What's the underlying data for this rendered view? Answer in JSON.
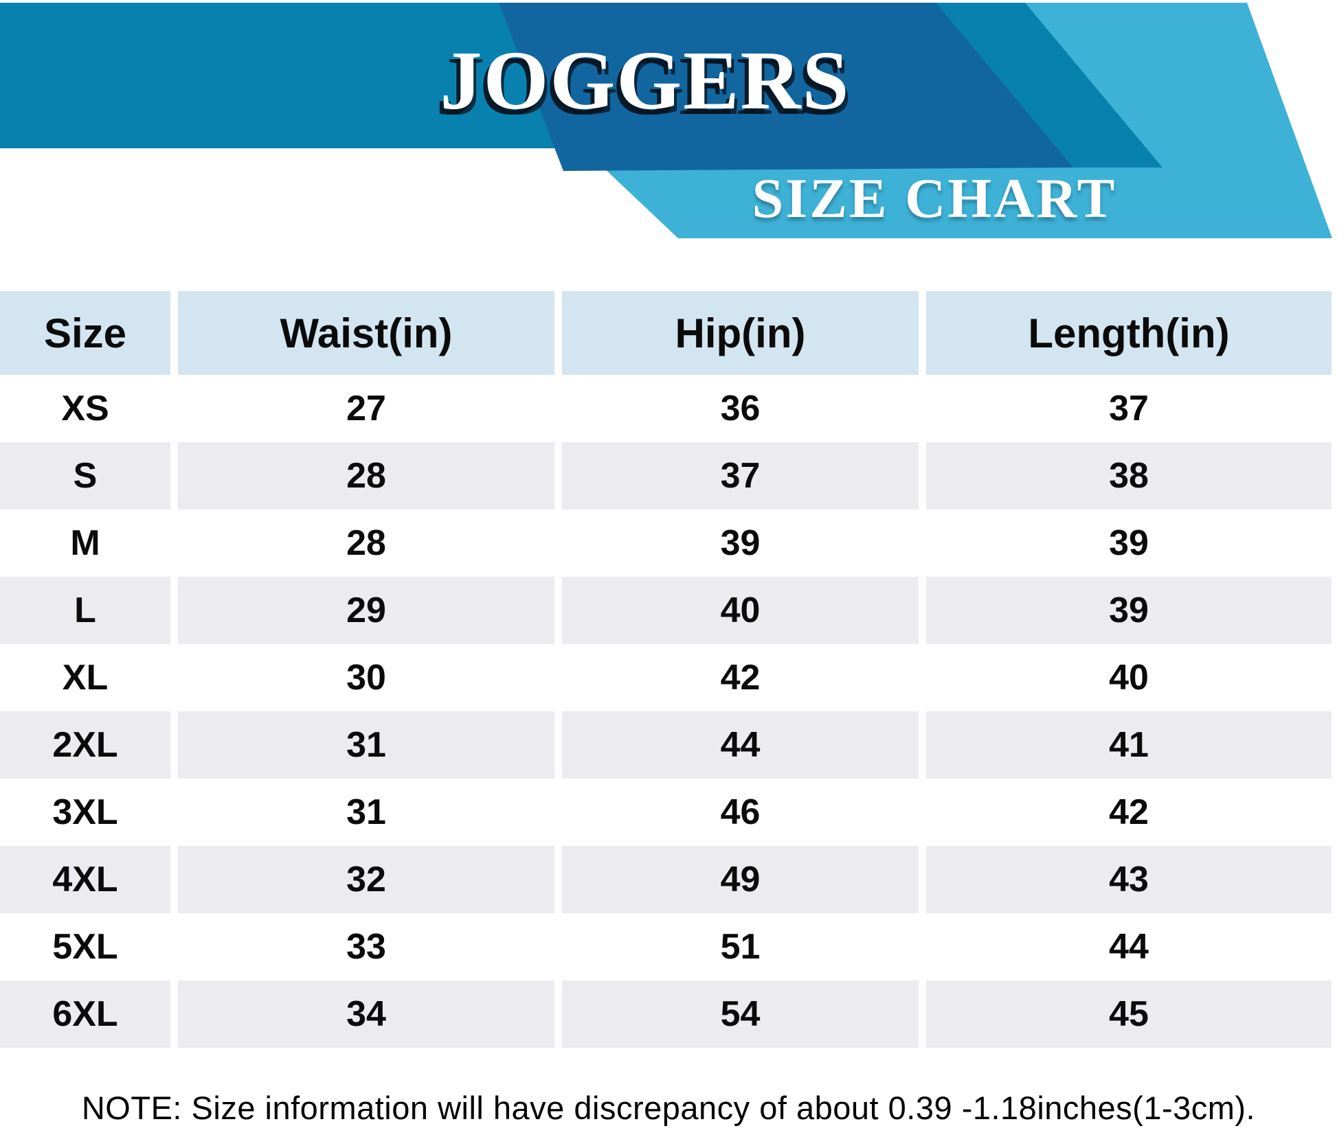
{
  "header": {
    "title": "JOGGERS",
    "subtitle": "SIZE CHART",
    "colors": {
      "banner_blue": "#0981af",
      "dark_blue": "#1266a0",
      "light_blue": "#3eb1d6",
      "table_header_bg": "#d3e5f1",
      "stripe_gray": "#ebebf0"
    }
  },
  "table": {
    "columns": [
      "Size",
      "Waist(in)",
      "Hip(in)",
      "Length(in)"
    ],
    "rows": [
      {
        "size": "XS",
        "waist": "27",
        "hip": "36",
        "length": "37"
      },
      {
        "size": "S",
        "waist": "28",
        "hip": "37",
        "length": "38"
      },
      {
        "size": "M",
        "waist": "28",
        "hip": "39",
        "length": "39"
      },
      {
        "size": "L",
        "waist": "29",
        "hip": "40",
        "length": "39"
      },
      {
        "size": "XL",
        "waist": "30",
        "hip": "42",
        "length": "40"
      },
      {
        "size": "2XL",
        "waist": "31",
        "hip": "44",
        "length": "41"
      },
      {
        "size": "3XL",
        "waist": "31",
        "hip": "46",
        "length": "42"
      },
      {
        "size": "4XL",
        "waist": "32",
        "hip": "49",
        "length": "43"
      },
      {
        "size": "5XL",
        "waist": "33",
        "hip": "51",
        "length": "44"
      },
      {
        "size": "6XL",
        "waist": "34",
        "hip": "54",
        "length": "45"
      }
    ]
  },
  "note": "NOTE: Size information will have discrepancy of about 0.39 -1.18inches(1-3cm)."
}
